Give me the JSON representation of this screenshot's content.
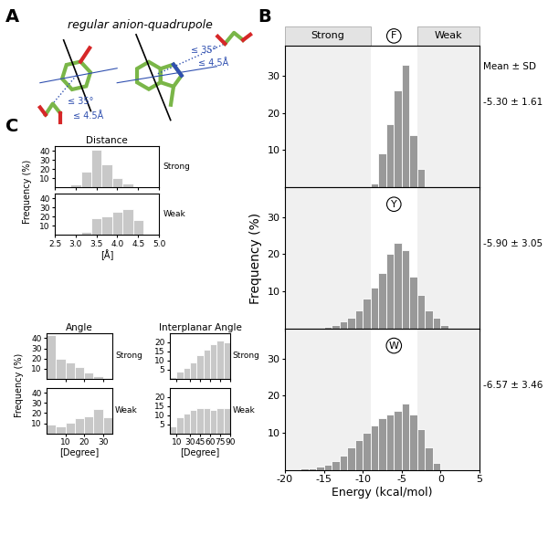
{
  "panel_labels": [
    "A",
    "B",
    "C"
  ],
  "diagram": {
    "title": "regular anion-quadrupole",
    "annotations": [
      "≤ 35°",
      "≤ 4.5Å",
      "≤ 35°",
      "≤ 4.5Å"
    ]
  },
  "chart_data": [
    {
      "type": "histogram",
      "label": "F",
      "bins": [
        -9,
        -8,
        -7,
        -6,
        -5,
        -4,
        -3,
        -2
      ],
      "values": [
        1,
        9,
        17,
        26,
        33,
        14,
        5
      ],
      "color": "#999999",
      "xlim": [
        -20,
        5
      ],
      "xticks": [
        -20,
        -15,
        -10,
        -5,
        0,
        5
      ],
      "ylim": [
        0,
        38
      ],
      "yticks": [
        10,
        20,
        30
      ],
      "tick_labels": "y",
      "annotation": "-5.30 ± 1.61",
      "stats_title": "Mean ± SD",
      "regions": [
        {
          "name": "Strong",
          "range": [
            -20,
            -9
          ]
        },
        {
          "name": "Weak",
          "range": [
            -3,
            5
          ]
        }
      ]
    },
    {
      "type": "histogram",
      "label": "Y",
      "bins": [
        -15,
        -14,
        -13,
        -12,
        -11,
        -10,
        -9,
        -8,
        -7,
        -6,
        -5,
        -4,
        -3,
        -2,
        -1,
        0,
        1
      ],
      "values": [
        0.5,
        1,
        2,
        3,
        5,
        8,
        11,
        15,
        20,
        23,
        21,
        14,
        9,
        5,
        3,
        1
      ],
      "color": "#999999",
      "xlim": [
        -20,
        5
      ],
      "xticks": [
        -20,
        -15,
        -10,
        -5,
        0,
        5
      ],
      "ylim": [
        0,
        38
      ],
      "yticks": [
        10,
        20,
        30
      ],
      "tick_labels": "y",
      "annotation": "-5.90 ± 3.05",
      "ylabel": "Frequency (%)"
    },
    {
      "type": "histogram",
      "label": "W",
      "bins": [
        -18,
        -17,
        -16,
        -15,
        -14,
        -13,
        -12,
        -11,
        -10,
        -9,
        -8,
        -7,
        -6,
        -5,
        -4,
        -3,
        -2,
        -1,
        0
      ],
      "values": [
        0.5,
        0.5,
        1,
        1.5,
        2.5,
        4,
        6,
        8,
        10,
        12,
        14,
        15,
        16,
        18,
        15,
        11,
        6,
        2
      ],
      "color": "#999999",
      "xlim": [
        -20,
        5
      ],
      "xticks": [
        -20,
        -15,
        -10,
        -5,
        0,
        5
      ],
      "ylim": [
        0,
        38
      ],
      "yticks": [
        10,
        20,
        30
      ],
      "annotation": "-6.57 ± 3.46",
      "xlabel": "Energy (kcal/mol)"
    },
    {
      "type": "histogram",
      "title": "Distance",
      "subtitle": "Strong",
      "bins": [
        2.875,
        3.125,
        3.375,
        3.625,
        3.875,
        4.125,
        4.375
      ],
      "values": [
        3,
        17,
        41,
        25,
        10,
        4
      ],
      "color": "#c8c8c8",
      "xlim": [
        2.5,
        5.0
      ],
      "xticks": [
        2.5,
        3.0,
        3.5,
        4.0,
        4.5,
        5.0
      ],
      "ylim": [
        0,
        45
      ],
      "yticks": [
        10,
        20,
        30,
        40
      ],
      "tick_labels": "y"
    },
    {
      "type": "histogram",
      "subtitle": "Weak",
      "bins": [
        3.125,
        3.375,
        3.625,
        3.875,
        4.125,
        4.375,
        4.625
      ],
      "values": [
        3,
        18,
        20,
        25,
        28,
        16
      ],
      "color": "#c8c8c8",
      "xlim": [
        2.5,
        5.0
      ],
      "xticks": [
        2.5,
        3.0,
        3.5,
        4.0,
        4.5,
        5.0
      ],
      "ylim": [
        0,
        45
      ],
      "yticks": [
        10,
        20,
        30,
        40
      ],
      "xlabel": "[Å]",
      "ylabel": "Frequency (%)"
    },
    {
      "type": "histogram",
      "title": "Angle",
      "subtitle": "Strong",
      "bins": [
        0,
        5,
        10,
        15,
        20,
        25,
        30,
        35
      ],
      "values": [
        43,
        20,
        16,
        12,
        6,
        3,
        1
      ],
      "color": "#c8c8c8",
      "xlim": [
        0,
        35
      ],
      "xticks": [
        10,
        20,
        30
      ],
      "ylim": [
        0,
        45
      ],
      "yticks": [
        10,
        20,
        30,
        40
      ],
      "tick_labels": "y"
    },
    {
      "type": "histogram",
      "subtitle": "Weak",
      "bins": [
        0,
        5,
        10,
        15,
        20,
        25,
        30,
        35
      ],
      "values": [
        9,
        7,
        11,
        15,
        17,
        24,
        16
      ],
      "color": "#c8c8c8",
      "xlim": [
        0,
        35
      ],
      "xticks": [
        10,
        20,
        30
      ],
      "ylim": [
        0,
        45
      ],
      "yticks": [
        10,
        20,
        30,
        40
      ],
      "xlabel": "[Degree]",
      "ylabel": "Frequency (%)"
    },
    {
      "type": "histogram",
      "title": "Interplanar Angle",
      "subtitle": "Strong",
      "bins": [
        0,
        10,
        20,
        30,
        40,
        50,
        60,
        70,
        80,
        90
      ],
      "values": [
        1,
        4,
        6,
        9,
        13,
        16,
        19,
        21,
        20
      ],
      "color": "#c8c8c8",
      "xlim": [
        0,
        90
      ],
      "xticks": [
        10,
        30,
        45,
        60,
        75,
        90
      ],
      "ylim": [
        0,
        25
      ],
      "yticks": [
        5,
        10,
        15,
        20
      ],
      "tick_labels": "y"
    },
    {
      "type": "histogram",
      "subtitle": "Weak",
      "bins": [
        0,
        10,
        20,
        30,
        40,
        50,
        60,
        70,
        80,
        90
      ],
      "values": [
        4,
        9,
        11,
        13,
        14,
        14,
        13,
        14,
        14
      ],
      "color": "#c8c8c8",
      "xlim": [
        0,
        90
      ],
      "xticks": [
        10,
        30,
        45,
        60,
        75,
        90
      ],
      "ylim": [
        0,
        25
      ],
      "yticks": [
        5,
        10,
        15,
        20
      ],
      "xlabel": "[Degree]"
    }
  ]
}
